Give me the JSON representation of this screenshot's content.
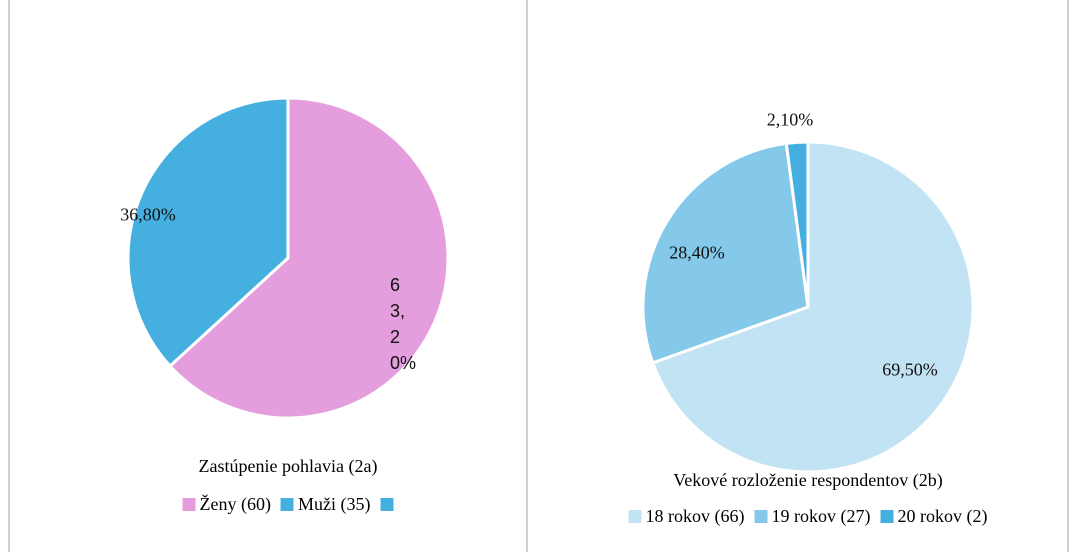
{
  "chart_data": [
    {
      "type": "pie",
      "title": "Zastúpenie pohlavia (2a)",
      "categories": [
        "Ženy (60)",
        "Muži (35)",
        null
      ],
      "values": [
        63.2,
        36.8,
        0
      ],
      "value_labels": [
        "63,20%",
        "36,80%",
        null
      ],
      "colors": [
        "#e49ede",
        "#45b0e0",
        "#45b0e0"
      ]
    },
    {
      "type": "pie",
      "title": "Vekové rozloženie respondentov (2b)",
      "categories": [
        "18 rokov (66)",
        "19 rokov (27)",
        "20 rokov (2)"
      ],
      "values": [
        69.5,
        28.4,
        2.1
      ],
      "value_labels": [
        "69,50%",
        "28,40%",
        "2,10%"
      ],
      "colors": [
        "#c2e3f4",
        "#84c9ea",
        "#45b0e0"
      ]
    }
  ]
}
